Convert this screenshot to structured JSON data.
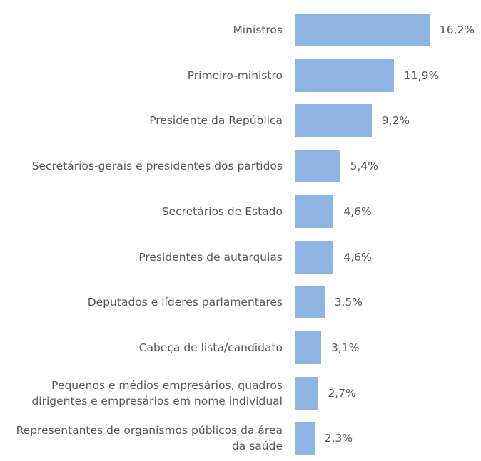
{
  "chart_data": {
    "type": "bar",
    "orientation": "horizontal",
    "categories": [
      "Ministros",
      "Primeiro-ministro",
      "Presidente da República",
      "Secretários-gerais e presidentes dos partidos",
      "Secretários de Estado",
      "Presidentes de autarquias",
      "Deputados e líderes parlamentares",
      "Cabeça de lista/candidato",
      "Pequenos e médios empresários, quadros dirigentes e empresários em nome individual",
      "Representantes de organismos públicos da área da saúde"
    ],
    "values": [
      16.2,
      11.9,
      9.2,
      5.4,
      4.6,
      4.6,
      3.5,
      3.1,
      2.7,
      2.3
    ],
    "value_labels": [
      "16,2%",
      "11,9%",
      "9,2%",
      "5,4%",
      "4,6%",
      "4,6%",
      "3,5%",
      "3,1%",
      "2,7%",
      "2,3%"
    ],
    "color": "#8eb4e3"
  }
}
